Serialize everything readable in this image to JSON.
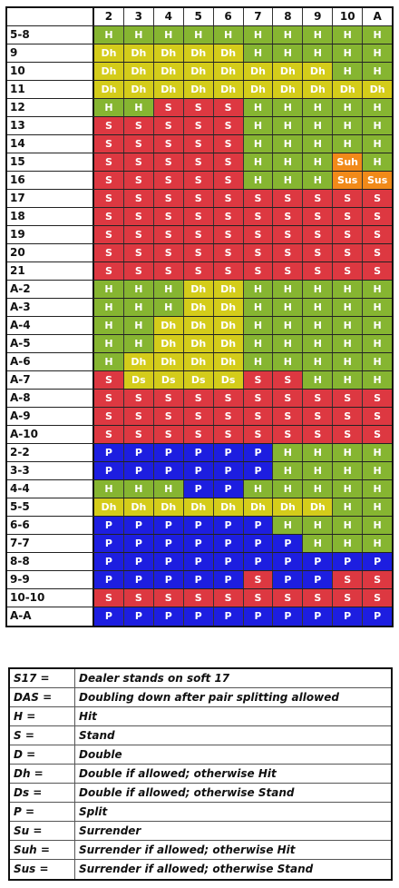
{
  "colors": {
    "H": "#86b531",
    "S": "#dd3841",
    "Dh": "#d4cc1a",
    "Ds": "#d4cc1a",
    "P": "#1d1ee0",
    "Suh": "#f18a19",
    "Sus": "#f18a19"
  },
  "dealer_cards": [
    "2",
    "3",
    "4",
    "5",
    "6",
    "7",
    "8",
    "9",
    "10",
    "A"
  ],
  "rows": [
    {
      "hand": "5-8",
      "actions": [
        "H",
        "H",
        "H",
        "H",
        "H",
        "H",
        "H",
        "H",
        "H",
        "H"
      ]
    },
    {
      "hand": "9",
      "actions": [
        "Dh",
        "Dh",
        "Dh",
        "Dh",
        "Dh",
        "H",
        "H",
        "H",
        "H",
        "H"
      ]
    },
    {
      "hand": "10",
      "actions": [
        "Dh",
        "Dh",
        "Dh",
        "Dh",
        "Dh",
        "Dh",
        "Dh",
        "Dh",
        "H",
        "H"
      ]
    },
    {
      "hand": "11",
      "actions": [
        "Dh",
        "Dh",
        "Dh",
        "Dh",
        "Dh",
        "Dh",
        "Dh",
        "Dh",
        "Dh",
        "Dh"
      ]
    },
    {
      "hand": "12",
      "actions": [
        "H",
        "H",
        "S",
        "S",
        "S",
        "H",
        "H",
        "H",
        "H",
        "H"
      ]
    },
    {
      "hand": "13",
      "actions": [
        "S",
        "S",
        "S",
        "S",
        "S",
        "H",
        "H",
        "H",
        "H",
        "H"
      ]
    },
    {
      "hand": "14",
      "actions": [
        "S",
        "S",
        "S",
        "S",
        "S",
        "H",
        "H",
        "H",
        "H",
        "H"
      ]
    },
    {
      "hand": "15",
      "actions": [
        "S",
        "S",
        "S",
        "S",
        "S",
        "H",
        "H",
        "H",
        "Suh",
        "H"
      ]
    },
    {
      "hand": "16",
      "actions": [
        "S",
        "S",
        "S",
        "S",
        "S",
        "H",
        "H",
        "H",
        "Sus",
        "Sus"
      ]
    },
    {
      "hand": "17",
      "actions": [
        "S",
        "S",
        "S",
        "S",
        "S",
        "S",
        "S",
        "S",
        "S",
        "S"
      ]
    },
    {
      "hand": "18",
      "actions": [
        "S",
        "S",
        "S",
        "S",
        "S",
        "S",
        "S",
        "S",
        "S",
        "S"
      ]
    },
    {
      "hand": "19",
      "actions": [
        "S",
        "S",
        "S",
        "S",
        "S",
        "S",
        "S",
        "S",
        "S",
        "S"
      ]
    },
    {
      "hand": "20",
      "actions": [
        "S",
        "S",
        "S",
        "S",
        "S",
        "S",
        "S",
        "S",
        "S",
        "S"
      ]
    },
    {
      "hand": "21",
      "actions": [
        "S",
        "S",
        "S",
        "S",
        "S",
        "S",
        "S",
        "S",
        "S",
        "S"
      ]
    },
    {
      "hand": "A-2",
      "actions": [
        "H",
        "H",
        "H",
        "Dh",
        "Dh",
        "H",
        "H",
        "H",
        "H",
        "H"
      ]
    },
    {
      "hand": "A-3",
      "actions": [
        "H",
        "H",
        "H",
        "Dh",
        "Dh",
        "H",
        "H",
        "H",
        "H",
        "H"
      ]
    },
    {
      "hand": "A-4",
      "actions": [
        "H",
        "H",
        "Dh",
        "Dh",
        "Dh",
        "H",
        "H",
        "H",
        "H",
        "H"
      ]
    },
    {
      "hand": "A-5",
      "actions": [
        "H",
        "H",
        "Dh",
        "Dh",
        "Dh",
        "H",
        "H",
        "H",
        "H",
        "H"
      ]
    },
    {
      "hand": "A-6",
      "actions": [
        "H",
        "Dh",
        "Dh",
        "Dh",
        "Dh",
        "H",
        "H",
        "H",
        "H",
        "H"
      ]
    },
    {
      "hand": "A-7",
      "actions": [
        "S",
        "Ds",
        "Ds",
        "Ds",
        "Ds",
        "S",
        "S",
        "H",
        "H",
        "H"
      ]
    },
    {
      "hand": "A-8",
      "actions": [
        "S",
        "S",
        "S",
        "S",
        "S",
        "S",
        "S",
        "S",
        "S",
        "S"
      ]
    },
    {
      "hand": "A-9",
      "actions": [
        "S",
        "S",
        "S",
        "S",
        "S",
        "S",
        "S",
        "S",
        "S",
        "S"
      ]
    },
    {
      "hand": "A-10",
      "actions": [
        "S",
        "S",
        "S",
        "S",
        "S",
        "S",
        "S",
        "S",
        "S",
        "S"
      ]
    },
    {
      "hand": "2-2",
      "actions": [
        "P",
        "P",
        "P",
        "P",
        "P",
        "P",
        "H",
        "H",
        "H",
        "H"
      ]
    },
    {
      "hand": "3-3",
      "actions": [
        "P",
        "P",
        "P",
        "P",
        "P",
        "P",
        "H",
        "H",
        "H",
        "H"
      ]
    },
    {
      "hand": "4-4",
      "actions": [
        "H",
        "H",
        "H",
        "P",
        "P",
        "H",
        "H",
        "H",
        "H",
        "H"
      ]
    },
    {
      "hand": "5-5",
      "actions": [
        "Dh",
        "Dh",
        "Dh",
        "Dh",
        "Dh",
        "Dh",
        "Dh",
        "Dh",
        "H",
        "H"
      ]
    },
    {
      "hand": "6-6",
      "actions": [
        "P",
        "P",
        "P",
        "P",
        "P",
        "P",
        "H",
        "H",
        "H",
        "H"
      ]
    },
    {
      "hand": "7-7",
      "actions": [
        "P",
        "P",
        "P",
        "P",
        "P",
        "P",
        "P",
        "H",
        "H",
        "H"
      ]
    },
    {
      "hand": "8-8",
      "actions": [
        "P",
        "P",
        "P",
        "P",
        "P",
        "P",
        "P",
        "P",
        "P",
        "P"
      ]
    },
    {
      "hand": "9-9",
      "actions": [
        "P",
        "P",
        "P",
        "P",
        "P",
        "S",
        "P",
        "P",
        "S",
        "S"
      ]
    },
    {
      "hand": "10-10",
      "actions": [
        "S",
        "S",
        "S",
        "S",
        "S",
        "S",
        "S",
        "S",
        "S",
        "S"
      ]
    },
    {
      "hand": "A-A",
      "actions": [
        "P",
        "P",
        "P",
        "P",
        "P",
        "P",
        "P",
        "P",
        "P",
        "P"
      ]
    }
  ],
  "legend": [
    {
      "key": "S17 =",
      "desc": "Dealer stands on soft 17"
    },
    {
      "key": "DAS =",
      "desc": "Doubling down after pair splitting allowed"
    },
    {
      "key": "H =",
      "desc": "Hit"
    },
    {
      "key": "S =",
      "desc": "Stand"
    },
    {
      "key": "D =",
      "desc": "Double"
    },
    {
      "key": "Dh =",
      "desc": "Double if allowed; otherwise Hit"
    },
    {
      "key": "Ds =",
      "desc": "Double if allowed; otherwise Stand"
    },
    {
      "key": "P =",
      "desc": "Split"
    },
    {
      "key": "Su =",
      "desc": "Surrender"
    },
    {
      "key": "Suh =",
      "desc": "Surrender if allowed; otherwise Hit"
    },
    {
      "key": "Sus =",
      "desc": "Surrender if allowed; otherwise Stand"
    }
  ]
}
